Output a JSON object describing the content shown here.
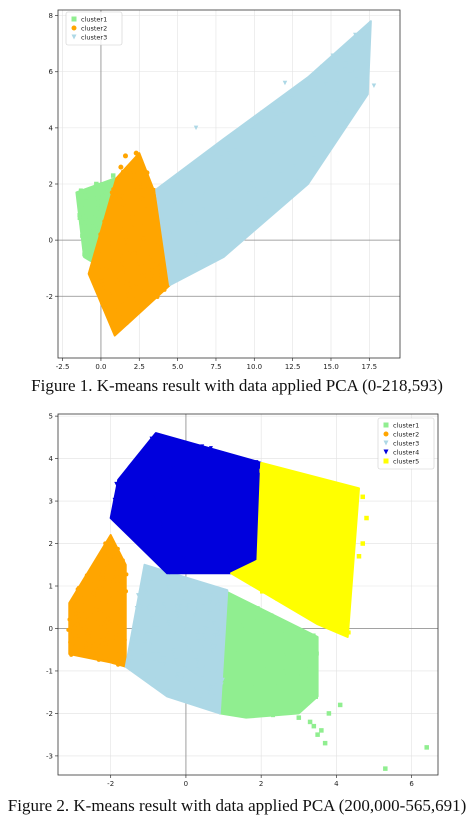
{
  "captions": [
    "Figure 1. K-means result with data applied PCA (0-218,593)",
    "Figure 2. K-means result with data applied PCA (200,000-565,691)"
  ],
  "colors": {
    "cluster1": "#90ee90",
    "cluster2": "#ffa500",
    "cluster3": "#add8e6",
    "cluster4": "#0000dd",
    "cluster5": "#ffff00"
  },
  "chart_data": [
    {
      "type": "scatter",
      "title": "",
      "xlabel": "",
      "ylabel": "",
      "xlim": [
        -2.8,
        19.5
      ],
      "ylim": [
        -4.2,
        8.2
      ],
      "xticks": [
        -2.5,
        0.0,
        2.5,
        5.0,
        7.5,
        10.0,
        12.5,
        15.0,
        17.5
      ],
      "xtick_labels": [
        "-2.5",
        "0.0",
        "2.5",
        "5.0",
        "7.5",
        "10.0",
        "12.5",
        "15.0",
        "17.5"
      ],
      "yticks": [
        -2,
        0,
        2,
        4,
        6,
        8
      ],
      "ytick_labels": [
        "-2",
        "0",
        "2",
        "4",
        "6",
        "8"
      ],
      "grid": true,
      "legend_position": "top-left",
      "series": [
        {
          "name": "cluster1",
          "marker": "square",
          "color": "#90ee90",
          "region": [
            [
              -1.6,
              1.7
            ],
            [
              0.9,
              2.2
            ],
            [
              -0.5,
              -0.8
            ],
            [
              -1.1,
              -0.6
            ]
          ]
        },
        {
          "name": "cluster2",
          "marker": "circle",
          "color": "#ffa500",
          "region": [
            [
              1.0,
              2.2
            ],
            [
              2.5,
              3.1
            ],
            [
              3.5,
              1.7
            ],
            [
              4.5,
              -1.6
            ],
            [
              0.9,
              -3.4
            ],
            [
              -0.8,
              -1.2
            ]
          ]
        },
        {
          "name": "cluster3",
          "marker": "triangle-down",
          "color": "#add8e6",
          "region": [
            [
              3.6,
              1.8
            ],
            [
              8.0,
              3.6
            ],
            [
              13.5,
              5.8
            ],
            [
              17.6,
              7.8
            ],
            [
              17.4,
              5.2
            ],
            [
              13.5,
              2.0
            ],
            [
              8.0,
              -0.6
            ],
            [
              4.5,
              -1.6
            ]
          ]
        }
      ]
    },
    {
      "type": "scatter",
      "title": "",
      "xlabel": "",
      "ylabel": "",
      "xlim": [
        -3.4,
        6.7
      ],
      "ylim": [
        -3.45,
        5.05
      ],
      "xticks": [
        -2,
        0,
        2,
        4,
        6
      ],
      "xtick_labels": [
        "-2",
        "0",
        "2",
        "4",
        "6"
      ],
      "yticks": [
        -3,
        -2,
        -1,
        0,
        1,
        2,
        3,
        4,
        5
      ],
      "ytick_labels": [
        "-3",
        "-2",
        "-1",
        "0",
        "1",
        "2",
        "3",
        "4",
        "5"
      ],
      "grid": true,
      "legend_position": "top-right",
      "series": [
        {
          "name": "cluster1",
          "marker": "square",
          "color": "#90ee90",
          "region": [
            [
              1.0,
              0.9
            ],
            [
              3.5,
              -0.2
            ],
            [
              3.5,
              -1.6
            ],
            [
              3.0,
              -2.0
            ],
            [
              1.6,
              -2.1
            ],
            [
              0.9,
              -2.0
            ]
          ]
        },
        {
          "name": "cluster2",
          "marker": "circle",
          "color": "#ffa500",
          "region": [
            [
              -2.0,
              2.2
            ],
            [
              -1.6,
              1.5
            ],
            [
              -1.6,
              -0.9
            ],
            [
              -2.0,
              -0.8
            ],
            [
              -3.1,
              -0.6
            ],
            [
              -3.1,
              0.6
            ]
          ]
        },
        {
          "name": "cluster3",
          "marker": "triangle-down",
          "color": "#add8e6",
          "region": [
            [
              -1.1,
              1.5
            ],
            [
              1.1,
              0.9
            ],
            [
              0.9,
              -2.0
            ],
            [
              -0.5,
              -1.6
            ],
            [
              -1.6,
              -0.9
            ]
          ]
        },
        {
          "name": "cluster4",
          "marker": "triangle-down",
          "color": "#0000dd",
          "region": [
            [
              -0.8,
              4.6
            ],
            [
              2.0,
              3.9
            ],
            [
              1.9,
              1.6
            ],
            [
              1.2,
              1.3
            ],
            [
              -0.5,
              1.3
            ],
            [
              -2.0,
              2.6
            ],
            [
              -1.8,
              3.5
            ]
          ]
        },
        {
          "name": "cluster5",
          "marker": "square",
          "color": "#ffff00",
          "region": [
            [
              2.0,
              3.9
            ],
            [
              4.6,
              3.3
            ],
            [
              4.3,
              -0.2
            ],
            [
              3.5,
              0.1
            ],
            [
              1.2,
              1.3
            ],
            [
              1.9,
              1.6
            ]
          ]
        }
      ]
    }
  ]
}
